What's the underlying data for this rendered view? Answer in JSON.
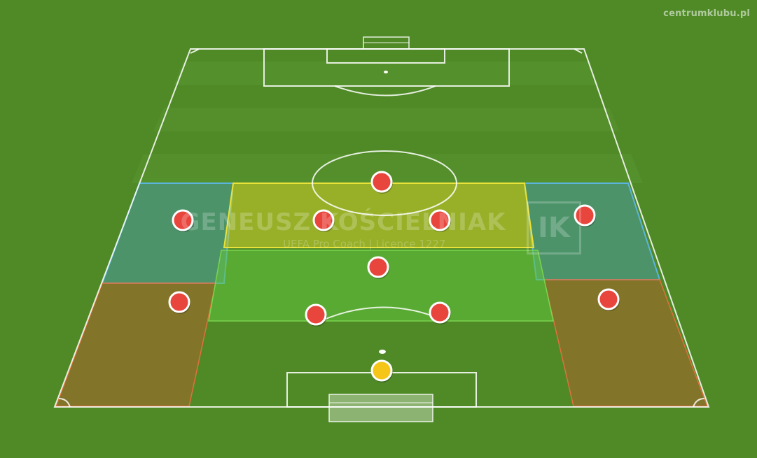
{
  "site_label": "centrumklubu.pl",
  "watermark": {
    "name": "GENEUSZ KOŚCIELNIAK",
    "subtitle": "UEFA Pro Coach  |  Licence 1227",
    "logo": "IK"
  },
  "colors": {
    "grass": "#4f8a26",
    "line": "#ffffff",
    "player": "#e8453c",
    "goalkeeper": "#f5c518",
    "zone_yellow": "#d4d02a",
    "zone_green": "#63c43c",
    "zone_blue": "#4a9fc6",
    "zone_orange": "#c0592e"
  },
  "zones": [
    {
      "id": "left-upper-zone",
      "color": "zone_blue"
    },
    {
      "id": "right-upper-zone",
      "color": "zone_blue"
    },
    {
      "id": "left-lower-zone",
      "color": "zone_orange"
    },
    {
      "id": "right-lower-zone",
      "color": "zone_orange"
    },
    {
      "id": "center-advanced-zone",
      "color": "zone_yellow"
    },
    {
      "id": "center-deep-zone",
      "color": "zone_green"
    }
  ],
  "players": [
    {
      "id": "striker",
      "role": "outfield"
    },
    {
      "id": "left-winger",
      "role": "outfield"
    },
    {
      "id": "left-attacking-midfielder",
      "role": "outfield"
    },
    {
      "id": "right-attacking-midfielder",
      "role": "outfield"
    },
    {
      "id": "right-winger",
      "role": "outfield"
    },
    {
      "id": "defensive-midfielder",
      "role": "outfield"
    },
    {
      "id": "left-back",
      "role": "outfield"
    },
    {
      "id": "left-center-back",
      "role": "outfield"
    },
    {
      "id": "right-center-back",
      "role": "outfield"
    },
    {
      "id": "right-back",
      "role": "outfield"
    },
    {
      "id": "goalkeeper",
      "role": "goalkeeper"
    }
  ]
}
